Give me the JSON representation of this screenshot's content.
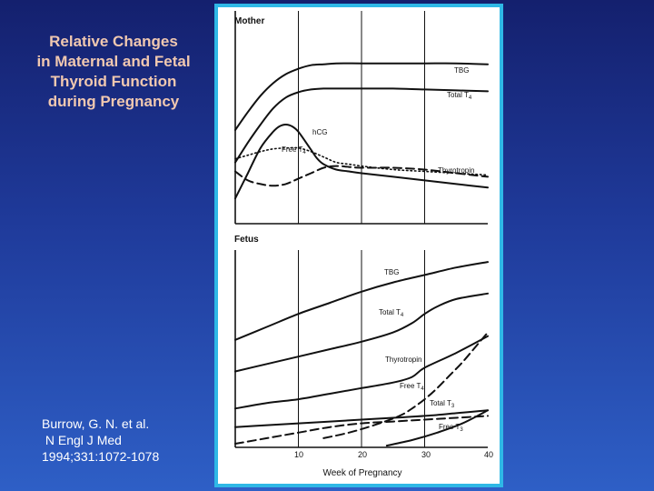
{
  "slide": {
    "title_lines": [
      "Relative Changes",
      "in Maternal and Fetal",
      "Thyroid Function",
      "during Pregnancy"
    ],
    "citation_lines": [
      "Burrow, G. N. et al.",
      " N Engl J Med",
      "1994;331:1072-1078"
    ]
  },
  "colors": {
    "background_top": "#14206e",
    "background_bottom": "#2e5fc6",
    "frame_border": "#2fb8e6",
    "title_text": "#f0c8b0",
    "line": "#111111"
  },
  "chart_data": [
    {
      "type": "line",
      "title": "Mother",
      "x_range": [
        0,
        40
      ],
      "y_range": [
        0,
        100
      ],
      "grid": {
        "vertical_lines_at": [
          10,
          20,
          30
        ]
      },
      "series": [
        {
          "name": "TBG",
          "style": "solid",
          "x": [
            0,
            2,
            4,
            6,
            8,
            10,
            12,
            14,
            16,
            20,
            25,
            30,
            35,
            40
          ],
          "y": [
            48,
            58,
            67,
            74,
            79,
            82,
            84,
            84.5,
            85,
            85,
            85,
            85,
            85,
            84.5
          ]
        },
        {
          "name": "Total T₄",
          "style": "solid",
          "x": [
            0,
            2,
            4,
            6,
            8,
            10,
            12,
            14,
            16,
            20,
            25,
            30,
            35,
            40
          ],
          "y": [
            30,
            41,
            51,
            60,
            66,
            69,
            70.5,
            71,
            71,
            71,
            71,
            70.5,
            70,
            69.5
          ]
        },
        {
          "name": "hCG",
          "style": "solid",
          "x": [
            0,
            2,
            4,
            6,
            7,
            8,
            9,
            10,
            12,
            13,
            14,
            16,
            18,
            20,
            25,
            30,
            35,
            40
          ],
          "y": [
            10,
            24,
            38,
            47,
            50,
            51,
            50,
            47,
            37,
            32,
            29,
            26,
            25,
            24,
            22,
            20,
            18,
            16
          ]
        },
        {
          "name": "Free T₄",
          "style": "dotted",
          "x": [
            0,
            2,
            4,
            6,
            8,
            10,
            12,
            14,
            16,
            18,
            20,
            25,
            30,
            35,
            40
          ],
          "y": [
            32,
            34,
            36,
            37.5,
            38,
            38,
            36,
            33,
            30,
            29,
            28,
            26,
            25,
            24,
            23
          ]
        },
        {
          "name": "Thyrotropin",
          "style": "dashed",
          "x": [
            0,
            2,
            4,
            6,
            8,
            10,
            12,
            14,
            16,
            18,
            20,
            25,
            30,
            35,
            40
          ],
          "y": [
            25,
            20,
            18,
            17,
            18,
            21,
            24,
            27,
            28,
            27.5,
            27,
            27,
            26,
            24,
            22
          ]
        }
      ],
      "series_labels": [
        "TBG",
        "Total T",
        "4",
        "hCG",
        "Free T",
        "4",
        "Thyrotropin"
      ]
    },
    {
      "type": "line",
      "title": "Fetus",
      "xlabel": "Week of Pregnancy",
      "x_ticks": [
        "10",
        "20",
        "30",
        "40"
      ],
      "x_range": [
        0,
        40
      ],
      "y_range": [
        0,
        100
      ],
      "grid": {
        "vertical_lines_at": [
          10,
          20,
          30
        ]
      },
      "series": [
        {
          "name": "TBG",
          "style": "solid",
          "x": [
            0,
            5,
            10,
            15,
            20,
            25,
            30,
            35,
            40
          ],
          "y": [
            55,
            62,
            69,
            75,
            81,
            86,
            90,
            94,
            97
          ]
        },
        {
          "name": "Total T₄",
          "style": "solid",
          "x": [
            0,
            5,
            10,
            15,
            20,
            25,
            28,
            30,
            32,
            35,
            40
          ],
          "y": [
            38,
            42,
            46,
            50,
            54,
            59,
            64,
            69,
            73,
            77,
            80
          ]
        },
        {
          "name": "Thyrotropin",
          "style": "solid",
          "x": [
            0,
            5,
            10,
            15,
            20,
            25,
            28,
            30,
            35,
            40
          ],
          "y": [
            18,
            21,
            23,
            26,
            29,
            32,
            35,
            40,
            48,
            57
          ]
        },
        {
          "name": "Free T₄",
          "style": "dashed",
          "x": [
            14,
            18,
            22,
            26,
            28,
            30,
            32,
            34,
            36,
            38,
            40
          ],
          "y": [
            2,
            5,
            9,
            14,
            18,
            23,
            29,
            36,
            43,
            51,
            59
          ]
        },
        {
          "name": "Total T₃",
          "style": "solid",
          "x": [
            0,
            5,
            10,
            15,
            20,
            25,
            30,
            35,
            40
          ],
          "y": [
            8,
            9,
            10,
            11,
            12,
            13,
            14,
            15.5,
            17
          ]
        },
        {
          "name": "Free T₃",
          "style": "dashed",
          "x": [
            0,
            5,
            10,
            15,
            20,
            25,
            30,
            35,
            40
          ],
          "y": [
            -1,
            2,
            5,
            8,
            10,
            11,
            12,
            13,
            14
          ]
        },
        {
          "name": "",
          "style": "solid",
          "x": [
            24,
            28,
            32,
            36,
            40
          ],
          "y": [
            -2,
            1,
            5,
            10,
            17
          ]
        }
      ],
      "series_labels": [
        "TBG",
        "Total T",
        "4",
        "Thyrotropin",
        "Free T",
        "4",
        "Total T",
        "3",
        "Free T",
        "3"
      ]
    }
  ]
}
